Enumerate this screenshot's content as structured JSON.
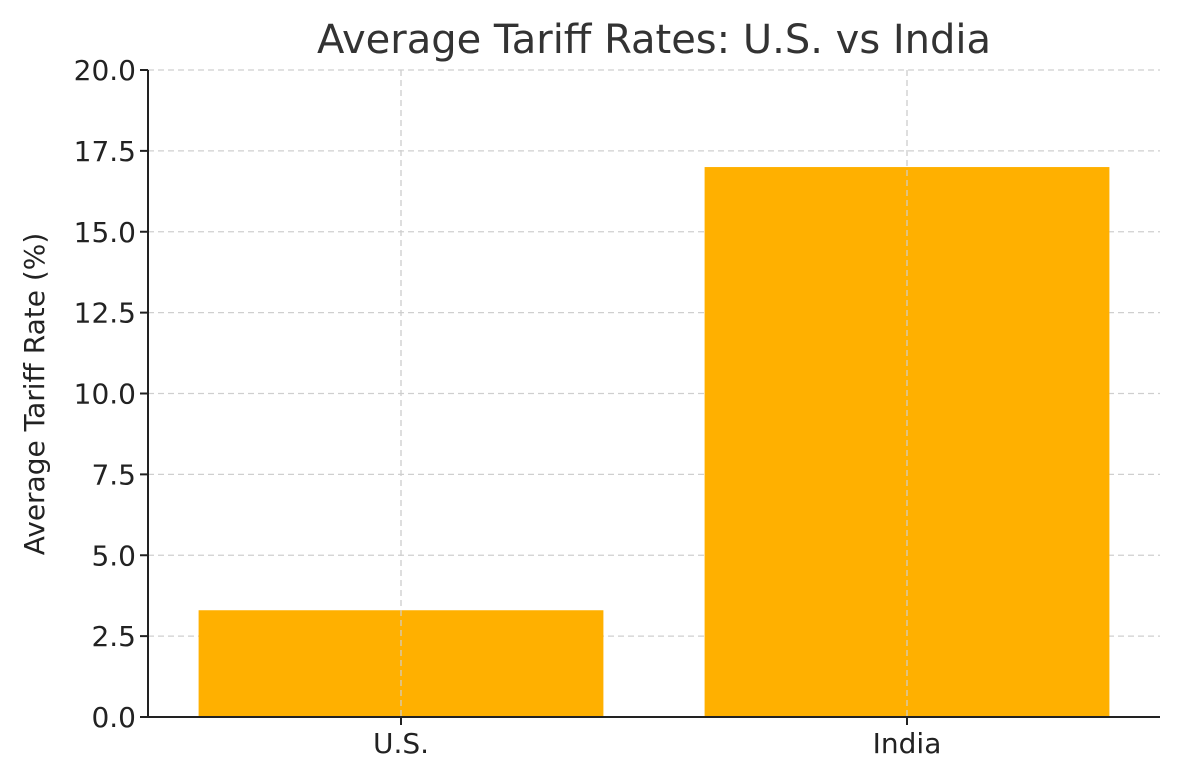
{
  "chart_data": {
    "type": "bar",
    "title": "Average Tariff Rates: U.S. vs India",
    "xlabel": "",
    "ylabel": "Average Tariff Rate (%)",
    "categories": [
      "U.S.",
      "India"
    ],
    "values": [
      3.3,
      17.0
    ],
    "ylim": [
      0,
      20
    ],
    "yticks": [
      "0.0",
      "2.5",
      "5.0",
      "7.5",
      "10.0",
      "12.5",
      "15.0",
      "17.5",
      "20.0"
    ],
    "grid": true,
    "bar_color": "#FFB000",
    "legend": "none"
  }
}
